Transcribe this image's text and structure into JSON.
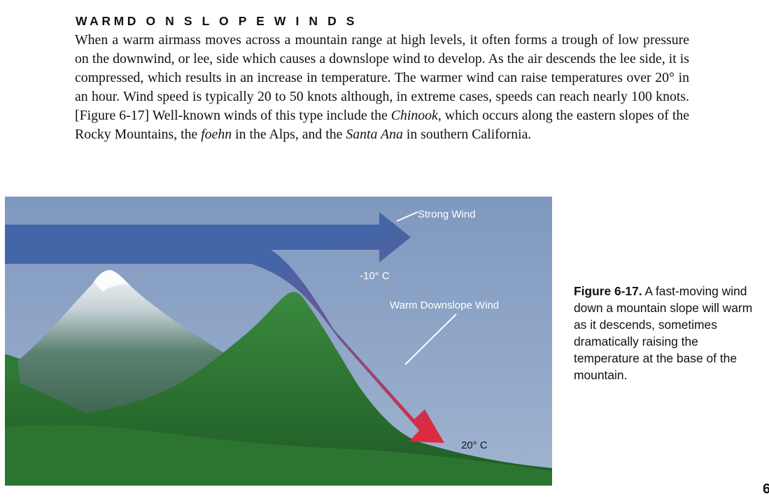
{
  "section": {
    "heading": "WARMD O N S L O P E W I N D S",
    "paragraph": {
      "p1": "When a warm airmass moves across a mountain range at high levels, it often forms a trough of low pressure on the downwind, or lee, side which causes a downslope wind to develop. As the air descends the lee side, it is compressed, which results in an increase in temperature. The warmer wind can raise temperatures over 20° in an hour. Wind speed is typically 20 to 50 knots although, in extreme cases, speeds can reach nearly 100 knots. [Figure 6-17] Well-known winds of this type include the ",
      "term1": "Chinook,",
      "p2": " which occurs along the eastern slopes of the Rocky Mountains, the ",
      "term2": "foehn",
      "p3": " in the Alps, and the ",
      "term3": "Santa Ana",
      "p4": " in southern California."
    }
  },
  "figure": {
    "labels": {
      "strong_wind": "Strong Wind",
      "top_temp": "-10° C",
      "downslope": "Warm Downslope Wind",
      "bottom_temp": "20° C"
    },
    "colors": {
      "sky_top": "#7f98bf",
      "sky_bottom": "#9fb4d0",
      "arrow_blue": "#3f63a6",
      "arrow_red": "#e0243a",
      "mountain_green": "#2f7a34",
      "snow": "#f4f6f8"
    },
    "caption": {
      "label": "Figure 6-17.",
      "text": " A fast-moving wind down a mountain slope will warm as it descends, sometimes dramatically raising the temperature at the base of the mountain."
    }
  },
  "page": {
    "number": "6"
  }
}
